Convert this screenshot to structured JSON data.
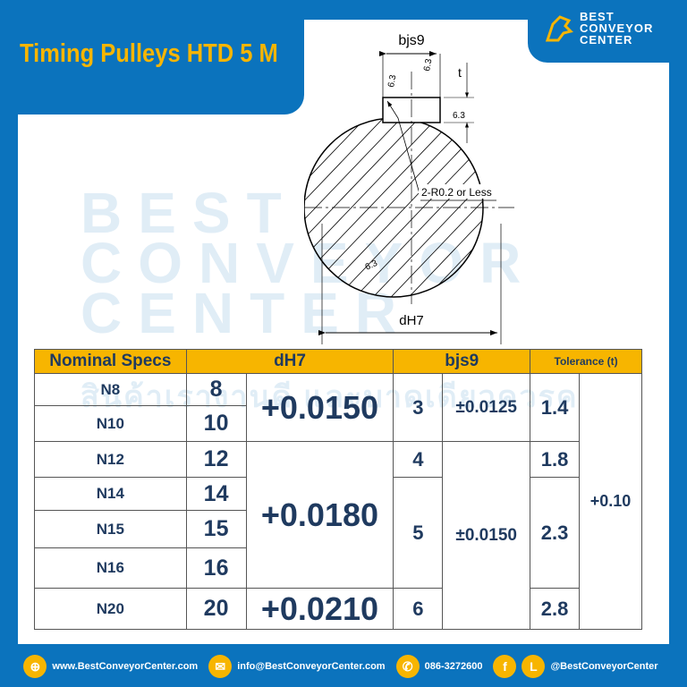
{
  "header": {
    "title": "Timing Pulleys HTD 5 M",
    "logo_line1": "BEST",
    "logo_line2": "CONVEYOR",
    "logo_line3": "CENTER"
  },
  "drawing": {
    "width_label": "bjs9",
    "diameter_label": "dH7",
    "depth_label": "t",
    "radius_note": "2-R0.2 or Less",
    "roughness": "6.3"
  },
  "watermark": {
    "line1": "BEST",
    "line2": "CONVEYOR",
    "line3": "CENTER",
    "thai": "สินค้าเรางานดี และบาดเดียวควรค"
  },
  "table": {
    "headers": [
      "Nominal Specs",
      "dH7",
      "bjs9",
      "Tolerance (t)"
    ],
    "rows": [
      {
        "spec": "N8",
        "d": "8"
      },
      {
        "spec": "N10",
        "d": "10"
      },
      {
        "spec": "N12",
        "d": "12"
      },
      {
        "spec": "N14",
        "d": "14"
      },
      {
        "spec": "N15",
        "d": "15"
      },
      {
        "spec": "N16",
        "d": "16"
      },
      {
        "spec": "N20",
        "d": "20"
      }
    ],
    "d_tol": [
      "+0.0150",
      "+0.0180",
      "+0.0210"
    ],
    "b": [
      "3",
      "4",
      "5",
      "6"
    ],
    "b_tol": [
      "±0.0125",
      "±0.0150"
    ],
    "t": [
      "1.4",
      "1.8",
      "2.3",
      "2.8"
    ],
    "t_tol": "+0.10"
  },
  "footer": {
    "website": "www.BestConveyorCenter.com",
    "email": "info@BestConveyorCenter.com",
    "phone": "086-3272600",
    "social": "@BestConveyorCenter"
  },
  "colors": {
    "brand_blue": "#0b73bd",
    "accent_yellow": "#f7b500",
    "text_navy": "#1f3a5f"
  }
}
